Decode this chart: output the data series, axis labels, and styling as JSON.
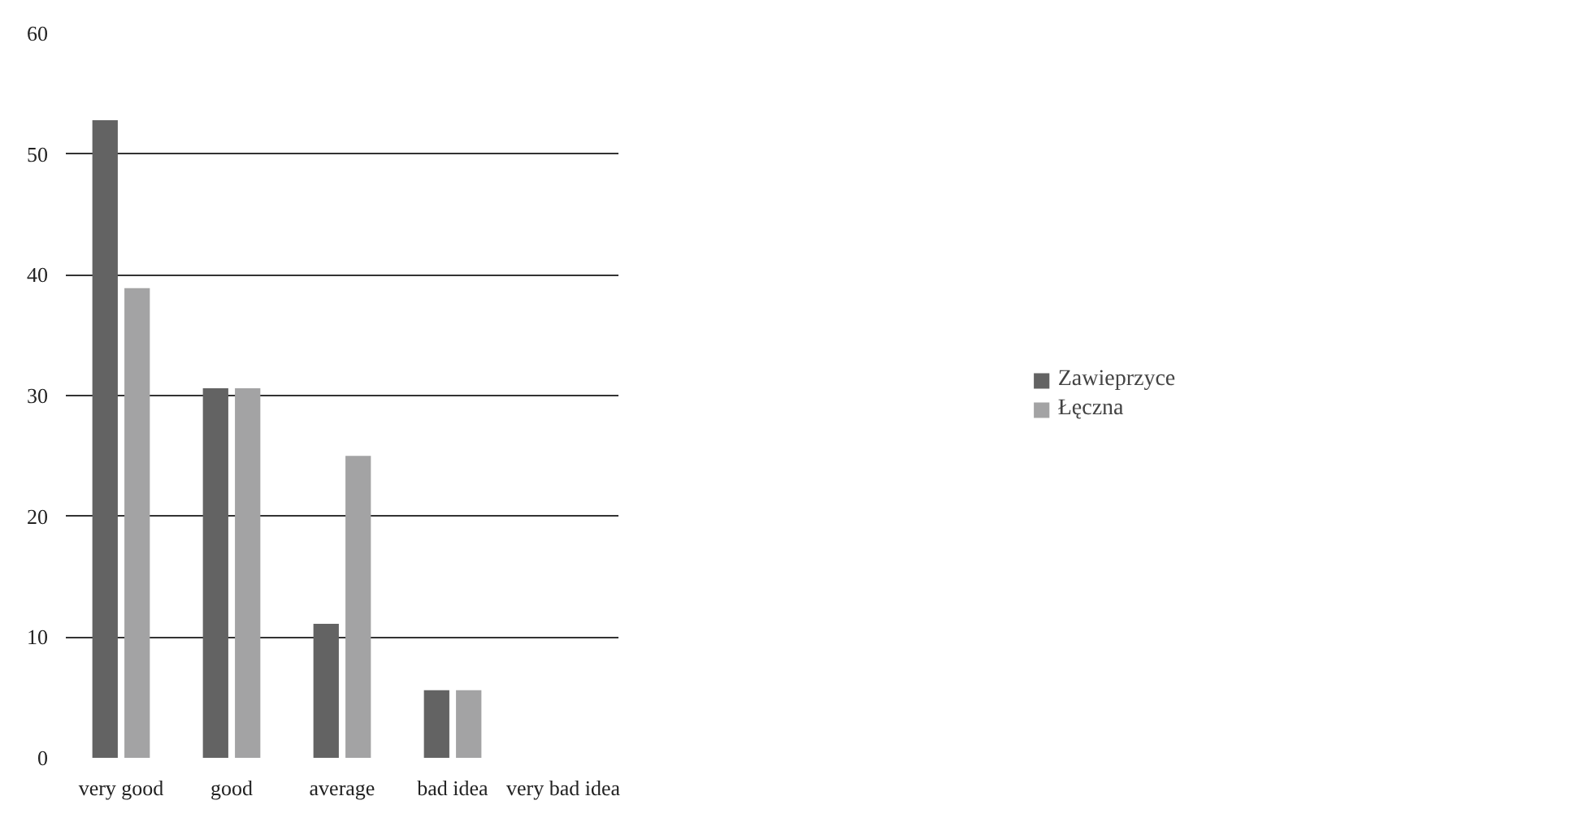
{
  "chart_data": {
    "type": "bar",
    "categories": [
      "very good",
      "good",
      "average",
      "bad idea",
      "very bad idea"
    ],
    "series": [
      {
        "name": "Zawieprzyce",
        "color": "#636363",
        "values": [
          52.8,
          30.6,
          11.1,
          5.6,
          0
        ]
      },
      {
        "name": "Łęczna",
        "color": "#a3a3a4",
        "values": [
          38.9,
          30.6,
          25,
          5.6,
          0
        ]
      }
    ],
    "ylim": [
      0,
      60
    ],
    "yticks": [
      0,
      10,
      20,
      30,
      40,
      50,
      60
    ],
    "grid": "y",
    "legend": "right"
  }
}
